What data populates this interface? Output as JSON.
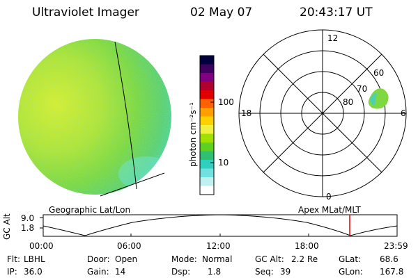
{
  "header": {
    "instrument": "Ultraviolet Imager",
    "date": "02 May 07",
    "time": "20:43:17 UT"
  },
  "colorbar": {
    "label": "photon cm⁻²s⁻¹",
    "ticks": [
      "100",
      "10"
    ],
    "scale": "log",
    "colors": [
      "#000040",
      "#400060",
      "#800080",
      "#b00030",
      "#e00000",
      "#ff6000",
      "#ffa000",
      "#ffd000",
      "#f0f040",
      "#a0e000",
      "#60d020",
      "#30c070",
      "#30d0c0",
      "#70e0e0",
      "#c0f0f0",
      "#ffffff"
    ]
  },
  "polar_plot": {
    "mlt_labels": {
      "top": "12",
      "bottom": "0",
      "left": "18",
      "right": "6"
    },
    "lat_labels": [
      "60",
      "70",
      "80"
    ],
    "emission_color": "#7fd840"
  },
  "timeline": {
    "ylabel": "GC Alt",
    "y_ticks": [
      "9.0",
      "1.8"
    ],
    "left_label": "Geographic Lat/Lon",
    "right_label": "Apex MLat/MLT",
    "x_ticks": [
      "00:00",
      "06:00",
      "12:00",
      "18:00",
      "23:59"
    ],
    "current_time_marker": "20:43",
    "marker_color": "#e00000"
  },
  "info": {
    "flt": {
      "label": "Flt:",
      "value": "LBHL"
    },
    "ip": {
      "label": "IP:",
      "value": "36.0"
    },
    "door": {
      "label": "Door:",
      "value": "Open"
    },
    "gain": {
      "label": "Gain:",
      "value": "14"
    },
    "mode": {
      "label": "Mode:",
      "value": "Normal"
    },
    "dsp": {
      "label": "Dsp:",
      "value": "1.8"
    },
    "gcalt": {
      "label": "GC Alt:",
      "value": "2.2 Re"
    },
    "seq": {
      "label": "Seq:",
      "value": "39"
    },
    "glat": {
      "label": "GLat:",
      "value": "68.6"
    },
    "glon": {
      "label": "GLon:",
      "value": "167.8"
    }
  }
}
